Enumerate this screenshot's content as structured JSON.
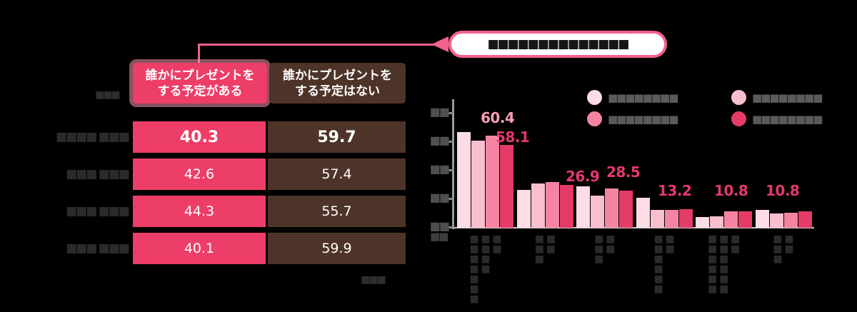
{
  "colors": {
    "bg": "#000000",
    "pink": "#ed3e68",
    "brown": "#4e3428",
    "callout_border": "#f4618a"
  },
  "callout": {
    "text": "■■■■■■■■■■■■■■"
  },
  "table": {
    "unit_note": "■■■",
    "headers": [
      {
        "line1": "誰かにプレゼントを",
        "line2": "する予定がある"
      },
      {
        "line1": "誰かにプレゼントを",
        "line2": "する予定はない"
      }
    ],
    "rows": [
      {
        "label": "■■■■ ■■■",
        "yes": "40.3",
        "no": "59.7"
      },
      {
        "label": "■■■ ■■■",
        "yes": "42.6",
        "no": "57.4"
      },
      {
        "label": "■■■ ■■■",
        "yes": "44.3",
        "no": "55.7"
      },
      {
        "label": "■■■ ■■■",
        "yes": "40.1",
        "no": "59.9"
      }
    ],
    "footnote": "■■■"
  },
  "chart_data": {
    "type": "bar",
    "ylim": [
      0,
      80
    ],
    "ytick_values_estimated": [
      80,
      60,
      40,
      20,
      0
    ],
    "ytick_labels": [
      "■■",
      "■■",
      "■■",
      "■■",
      "■■"
    ],
    "axis_corner_label": "■■",
    "grid": false,
    "legend_position": "top-right",
    "series": [
      {
        "name": "■■■■■■■■",
        "color": "#fcdce5",
        "values": [
          67,
          26.5,
          29,
          21,
          7.5,
          12.5
        ]
      },
      {
        "name": "■■■■■■■■",
        "color": "#f8bfce",
        "values": [
          61,
          31,
          22.5,
          12.5,
          8,
          10
        ]
      },
      {
        "name": "■■■■■■■■",
        "color": "#f584a3",
        "values": [
          64.5,
          32,
          27.5,
          12.7,
          11.5,
          10.6
        ]
      },
      {
        "name": "■■■■■■■■",
        "color": "#e43c67",
        "values": [
          58,
          30,
          26,
          12.8,
          11.5,
          11.5
        ]
      }
    ],
    "category_labels": [
      {
        "lines": [
          "■■",
          "■■■■",
          "■■■■■■■"
        ]
      },
      {
        "lines": [
          "■■",
          "■■■"
        ]
      },
      {
        "lines": [
          "■■",
          "■■■"
        ]
      },
      {
        "lines": [
          "■■",
          "■■■■■■"
        ]
      },
      {
        "lines": [
          "■■",
          "■■■■■■",
          "■■■■■■"
        ]
      },
      {
        "lines": [
          "■■",
          "■■■"
        ]
      }
    ],
    "data_labels": [
      {
        "text": "60.4",
        "category": 0,
        "style": "light"
      },
      {
        "text": "58.1",
        "category": 0,
        "style": "dark"
      },
      {
        "text": "26.9",
        "category": 1,
        "style": "dark"
      },
      {
        "text": "28.5",
        "category": 2,
        "style": "dark"
      },
      {
        "text": "13.2",
        "category": 3,
        "style": "dark"
      },
      {
        "text": "10.8",
        "category": 4,
        "style": "dark"
      },
      {
        "text": "10.8",
        "category": 5,
        "style": "dark"
      }
    ]
  }
}
